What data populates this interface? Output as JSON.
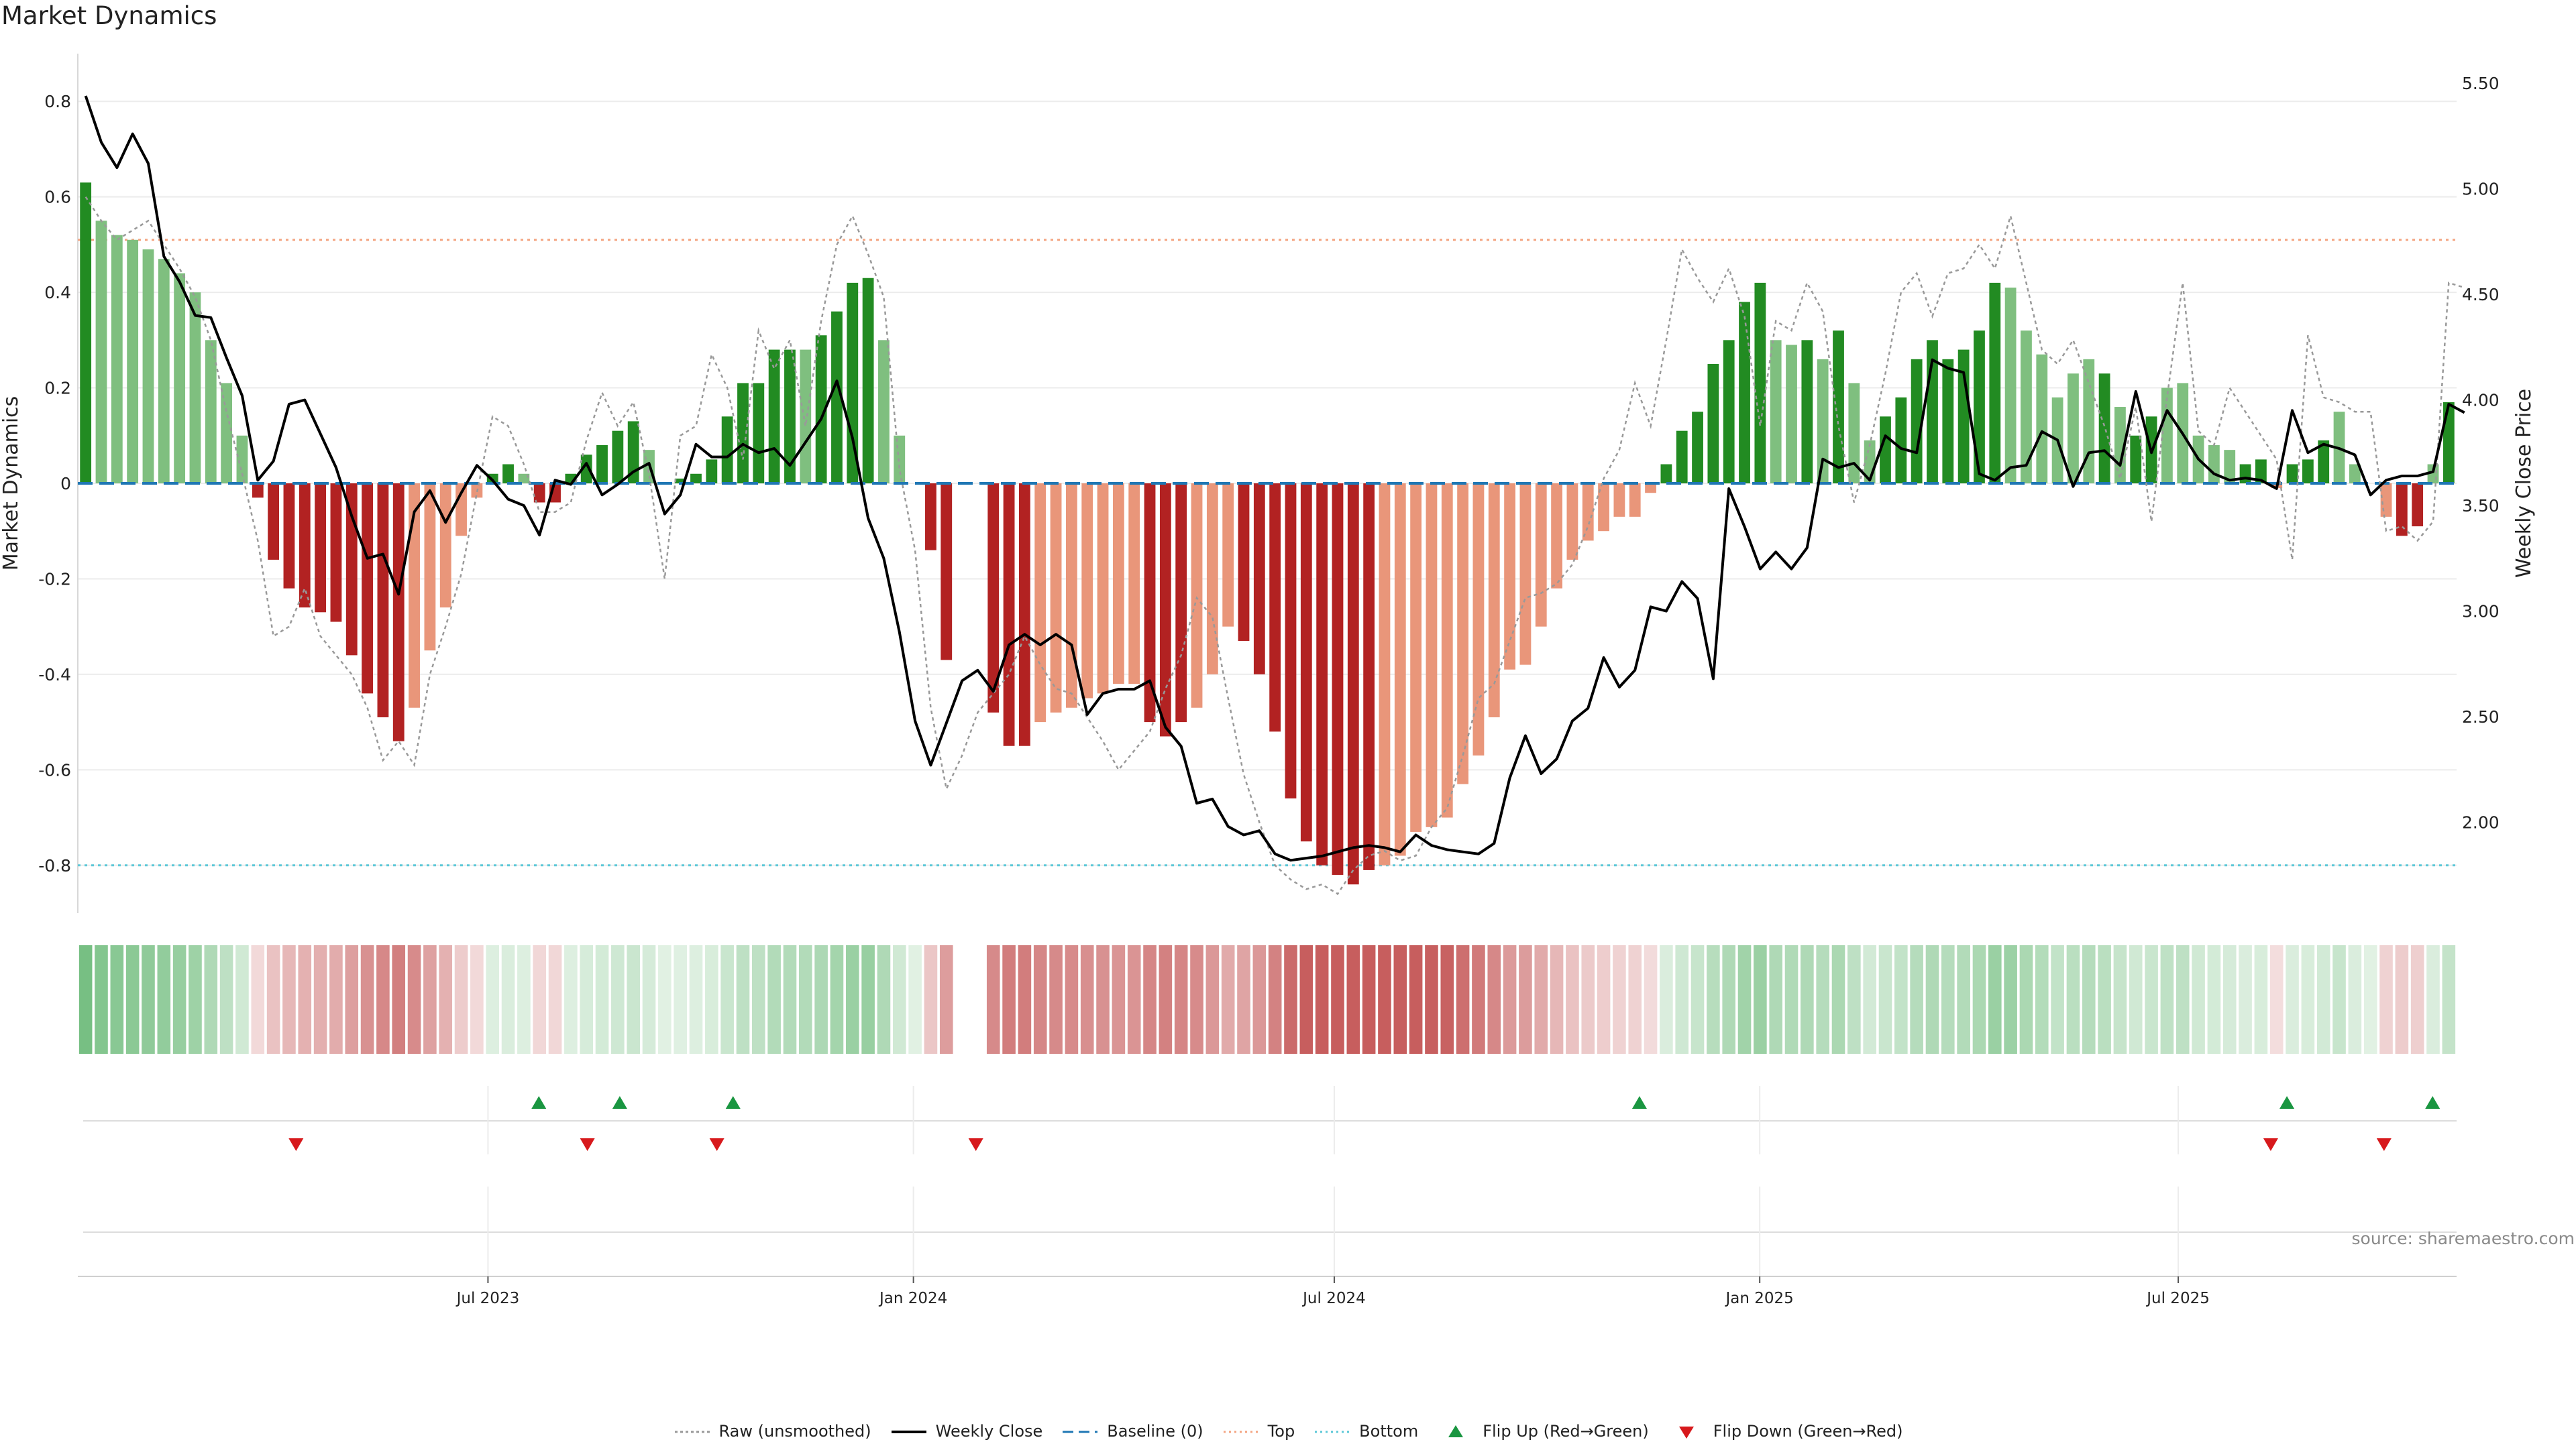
{
  "title": "Market Dynamics",
  "source": "source: sharemaestro.com",
  "colors": {
    "strong_green": "#228b22",
    "light_green": "#7fbf7f",
    "strong_red": "#b22222",
    "light_red": "#e9967a",
    "raw": "#999999",
    "close": "#000000",
    "baseline": "#1f77b4",
    "top": "#f4a582",
    "bottom": "#5ec8d8",
    "flip_up": "#1a9641",
    "flip_down": "#d7191c"
  },
  "legend": [
    {
      "key": "raw",
      "label": "Raw (unsmoothed)"
    },
    {
      "key": "close",
      "label": "Weekly Close"
    },
    {
      "key": "baseline",
      "label": "Baseline (0)"
    },
    {
      "key": "top",
      "label": "Top"
    },
    {
      "key": "bottom",
      "label": "Bottom"
    },
    {
      "key": "flip_up",
      "label": "Flip Up (Red→Green)"
    },
    {
      "key": "flip_down",
      "label": "Flip Down (Green→Red)"
    }
  ],
  "chart_data": {
    "type": "bar",
    "title": "Market Dynamics",
    "ylabel": "Market Dynamics",
    "y2label": "Weekly Close Price",
    "ylim": [
      -0.9,
      0.9
    ],
    "y2lim": [
      1.57,
      5.64
    ],
    "yticks": [
      "-0.8",
      "-0.6",
      "-0.4",
      "-0.2",
      "0",
      "0.2",
      "0.4",
      "0.6",
      "0.8"
    ],
    "y2ticks": [
      "2.00",
      "2.50",
      "3.00",
      "3.50",
      "4.00",
      "4.50",
      "5.00",
      "5.50"
    ],
    "x_start": "2023-01-08",
    "x_end": "2025-10-26",
    "xticks": [
      {
        "date": "2023-07-01",
        "label": "Jul 2023"
      },
      {
        "date": "2024-01-01",
        "label": "Jan 2024"
      },
      {
        "date": "2024-07-01",
        "label": "Jul 2024"
      },
      {
        "date": "2025-01-01",
        "label": "Jan 2025"
      },
      {
        "date": "2025-07-01",
        "label": "Jul 2025"
      }
    ],
    "top_line": 0.51,
    "bottom_line": -0.8,
    "baseline": 0,
    "bars": [
      0.63,
      0.55,
      0.52,
      0.51,
      0.49,
      0.47,
      0.44,
      0.4,
      0.3,
      0.21,
      0.1,
      -0.03,
      -0.16,
      -0.22,
      -0.26,
      -0.27,
      -0.29,
      -0.36,
      -0.44,
      -0.49,
      -0.54,
      -0.47,
      -0.35,
      -0.26,
      -0.11,
      -0.03,
      0.02,
      0.04,
      0.02,
      -0.04,
      -0.04,
      0.02,
      0.06,
      0.08,
      0.11,
      0.13,
      0.07,
      0,
      0.01,
      0.02,
      0.05,
      0.14,
      0.21,
      0.21,
      0.28,
      0.28,
      0.28,
      0.31,
      0.36,
      0.42,
      0.43,
      0.3,
      0.1,
      0,
      -0.14,
      -0.37,
      0,
      0,
      -0.48,
      -0.55,
      -0.55,
      -0.5,
      -0.48,
      -0.47,
      -0.45,
      -0.44,
      -0.42,
      -0.42,
      -0.5,
      -0.53,
      -0.5,
      -0.47,
      -0.4,
      -0.3,
      -0.33,
      -0.4,
      -0.52,
      -0.66,
      -0.75,
      -0.8,
      -0.82,
      -0.84,
      -0.81,
      -0.8,
      -0.78,
      -0.73,
      -0.72,
      -0.7,
      -0.63,
      -0.57,
      -0.49,
      -0.39,
      -0.38,
      -0.3,
      -0.22,
      -0.16,
      -0.12,
      -0.1,
      -0.07,
      -0.07,
      -0.02,
      0.04,
      0.11,
      0.15,
      0.25,
      0.3,
      0.38,
      0.42,
      0.3,
      0.29,
      0.3,
      0.26,
      0.32,
      0.21,
      0.09,
      0.14,
      0.18,
      0.26,
      0.3,
      0.26,
      0.28,
      0.32,
      0.42,
      0.41,
      0.32,
      0.27,
      0.18,
      0.23,
      0.26,
      0.23,
      0.16,
      0.1,
      0.14,
      0.2,
      0.21,
      0.1,
      0.08,
      0.07,
      0.04,
      0.05,
      -0.01,
      0.04,
      0.05,
      0.09,
      0.15,
      0.04,
      0,
      -0.07,
      -0.11,
      -0.09,
      0.04,
      0.17
    ],
    "bar_strength": [
      "s",
      "l",
      "l",
      "l",
      "l",
      "l",
      "l",
      "l",
      "l",
      "l",
      "l",
      "s",
      "s",
      "s",
      "s",
      "s",
      "s",
      "s",
      "s",
      "s",
      "s",
      "l",
      "l",
      "l",
      "l",
      "l",
      "s",
      "s",
      "l",
      "s",
      "s",
      "s",
      "s",
      "s",
      "s",
      "s",
      "l",
      "s",
      "s",
      "s",
      "s",
      "s",
      "s",
      "s",
      "s",
      "s",
      "l",
      "s",
      "s",
      "s",
      "s",
      "l",
      "l",
      "s",
      "s",
      "s",
      "s",
      "s",
      "s",
      "s",
      "s",
      "l",
      "l",
      "l",
      "l",
      "l",
      "l",
      "l",
      "s",
      "s",
      "s",
      "l",
      "l",
      "l",
      "s",
      "s",
      "s",
      "s",
      "s",
      "s",
      "s",
      "s",
      "s",
      "l",
      "l",
      "l",
      "l",
      "l",
      "l",
      "l",
      "l",
      "l",
      "l",
      "l",
      "l",
      "l",
      "l",
      "l",
      "l",
      "l",
      "l",
      "s",
      "s",
      "s",
      "s",
      "s",
      "s",
      "s",
      "l",
      "l",
      "s",
      "l",
      "s",
      "l",
      "l",
      "s",
      "s",
      "s",
      "s",
      "s",
      "s",
      "s",
      "s",
      "l",
      "l",
      "l",
      "l",
      "l",
      "l",
      "s",
      "l",
      "s",
      "s",
      "l",
      "l",
      "l",
      "l",
      "l",
      "s",
      "s",
      "l",
      "s",
      "s",
      "s",
      "l",
      "l",
      "l",
      "l",
      "s",
      "s",
      "l",
      "s",
      "s",
      "s"
    ],
    "raw": [
      0.6,
      0.55,
      0.51,
      0.53,
      0.55,
      0.5,
      0.45,
      0.39,
      0.3,
      0.15,
      0.02,
      -0.12,
      -0.32,
      -0.3,
      -0.22,
      -0.32,
      -0.36,
      -0.4,
      -0.47,
      -0.58,
      -0.54,
      -0.59,
      -0.4,
      -0.3,
      -0.19,
      -0.02,
      0.14,
      0.12,
      0.04,
      -0.06,
      -0.06,
      -0.04,
      0.09,
      0.19,
      0.12,
      0.17,
      0.02,
      -0.2,
      0.1,
      0.12,
      0.27,
      0.2,
      0.05,
      0.32,
      0.24,
      0.3,
      0.12,
      0.34,
      0.5,
      0.56,
      0.48,
      0.39,
      0.03,
      -0.14,
      -0.47,
      -0.64,
      -0.57,
      -0.48,
      -0.44,
      -0.4,
      -0.32,
      -0.38,
      -0.43,
      -0.44,
      -0.49,
      -0.54,
      -0.6,
      -0.56,
      -0.52,
      -0.43,
      -0.36,
      -0.24,
      -0.28,
      -0.45,
      -0.61,
      -0.71,
      -0.8,
      -0.83,
      -0.85,
      -0.84,
      -0.86,
      -0.81,
      -0.78,
      -0.77,
      -0.79,
      -0.78,
      -0.72,
      -0.68,
      -0.57,
      -0.45,
      -0.42,
      -0.33,
      -0.24,
      -0.23,
      -0.21,
      -0.17,
      -0.09,
      0.01,
      0.07,
      0.21,
      0.12,
      0.3,
      0.49,
      0.43,
      0.38,
      0.45,
      0.35,
      0.12,
      0.34,
      0.32,
      0.42,
      0.36,
      0.12,
      -0.04,
      0.08,
      0.23,
      0.4,
      0.44,
      0.35,
      0.44,
      0.45,
      0.5,
      0.45,
      0.56,
      0.42,
      0.28,
      0.25,
      0.3,
      0.21,
      0.12,
      0.01,
      0.16,
      -0.08,
      0.18,
      0.42,
      0.11,
      0.08,
      0.2,
      0.15,
      0.1,
      0.05,
      -0.16,
      0.31,
      0.18,
      0.17,
      0.15,
      0.15,
      -0.1,
      -0.09,
      -0.12,
      -0.08,
      0.42,
      0.41
    ],
    "weekly_close": [
      5.44,
      5.22,
      5.1,
      5.26,
      5.12,
      4.68,
      4.56,
      4.4,
      4.39,
      4.2,
      4.02,
      3.62,
      3.71,
      3.98,
      4.0,
      3.84,
      3.68,
      3.45,
      3.25,
      3.27,
      3.08,
      3.47,
      3.57,
      3.42,
      3.56,
      3.69,
      3.62,
      3.53,
      3.5,
      3.36,
      3.62,
      3.6,
      3.7,
      3.55,
      3.6,
      3.66,
      3.7,
      3.46,
      3.55,
      3.79,
      3.73,
      3.73,
      3.79,
      3.75,
      3.77,
      3.69,
      3.8,
      3.91,
      4.09,
      3.82,
      3.44,
      3.25,
      2.9,
      2.48,
      2.27,
      2.47,
      2.67,
      2.72,
      2.62,
      2.84,
      2.89,
      2.84,
      2.89,
      2.84,
      2.51,
      2.61,
      2.63,
      2.63,
      2.67,
      2.45,
      2.36,
      2.09,
      2.11,
      1.98,
      1.94,
      1.96,
      1.85,
      1.82,
      1.83,
      1.84,
      1.86,
      1.88,
      1.89,
      1.88,
      1.86,
      1.94,
      1.89,
      1.87,
      1.86,
      1.85,
      1.9,
      2.21,
      2.41,
      2.23,
      2.3,
      2.48,
      2.54,
      2.78,
      2.64,
      2.72,
      3.02,
      3.0,
      3.14,
      3.06,
      2.68,
      3.58,
      3.4,
      3.2,
      3.28,
      3.2,
      3.3,
      3.72,
      3.68,
      3.7,
      3.62,
      3.83,
      3.77,
      3.75,
      4.19,
      4.15,
      4.13,
      3.65,
      3.62,
      3.68,
      3.69,
      3.85,
      3.81,
      3.59,
      3.75,
      3.76,
      3.69,
      4.04,
      3.75,
      3.95,
      3.84,
      3.72,
      3.65,
      3.62,
      3.63,
      3.62,
      3.58,
      3.95,
      3.75,
      3.79,
      3.77,
      3.74,
      3.55,
      3.62,
      3.64,
      3.64,
      3.66,
      3.98,
      3.94
    ],
    "heat_strip": [
      0.63,
      0.55,
      0.52,
      0.51,
      0.49,
      0.47,
      0.44,
      0.4,
      0.3,
      0.21,
      0.1,
      -0.03,
      -0.16,
      -0.22,
      -0.26,
      -0.27,
      -0.29,
      -0.36,
      -0.44,
      -0.49,
      -0.54,
      -0.47,
      -0.35,
      -0.26,
      -0.11,
      -0.03,
      0.02,
      0.04,
      0.02,
      -0.04,
      -0.04,
      0.02,
      0.06,
      0.08,
      0.11,
      0.13,
      0.07,
      0,
      0.01,
      0.02,
      0.05,
      0.14,
      0.21,
      0.21,
      0.28,
      0.28,
      0.28,
      0.31,
      0.36,
      0.42,
      0.43,
      0.3,
      0.1,
      0,
      -0.14,
      -0.37,
      null,
      null,
      -0.48,
      -0.55,
      -0.55,
      -0.5,
      -0.48,
      -0.47,
      -0.45,
      -0.44,
      -0.42,
      -0.42,
      -0.5,
      -0.53,
      -0.5,
      -0.47,
      -0.4,
      -0.3,
      -0.33,
      -0.4,
      -0.52,
      -0.66,
      -0.75,
      -0.8,
      -0.82,
      -0.84,
      -0.81,
      -0.8,
      -0.78,
      -0.73,
      -0.72,
      -0.7,
      -0.63,
      -0.57,
      -0.49,
      -0.39,
      -0.38,
      -0.3,
      -0.22,
      -0.16,
      -0.12,
      -0.1,
      -0.07,
      -0.07,
      -0.02,
      0.04,
      0.11,
      0.15,
      0.25,
      0.3,
      0.38,
      0.42,
      0.3,
      0.29,
      0.3,
      0.26,
      0.32,
      0.21,
      0.09,
      0.14,
      0.18,
      0.26,
      0.3,
      0.26,
      0.28,
      0.32,
      0.42,
      0.41,
      0.32,
      0.27,
      0.18,
      0.23,
      0.26,
      0.23,
      0.16,
      0.1,
      0.14,
      0.2,
      0.21,
      0.1,
      0.08,
      0.07,
      0.04,
      0.05,
      -0.01,
      0.04,
      0.05,
      0.09,
      0.15,
      0.04,
      0,
      -0.07,
      -0.11,
      -0.09,
      0.04,
      0.17
    ],
    "flip_up_dates": [
      "2023-07-23",
      "2023-08-27",
      "2023-10-15",
      "2024-11-10",
      "2025-08-17",
      "2025-10-19"
    ],
    "flip_down_dates": [
      "2023-04-09",
      "2023-08-13",
      "2023-10-08",
      "2024-01-28",
      "2025-08-10",
      "2025-09-28"
    ]
  }
}
